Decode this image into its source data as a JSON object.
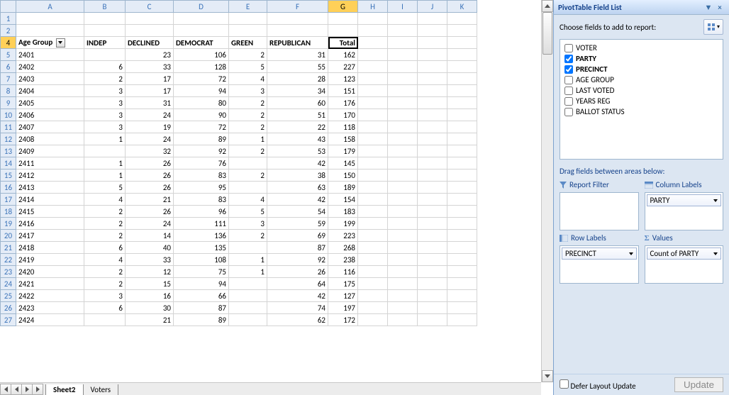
{
  "columns": [
    "A",
    "B",
    "C",
    "D",
    "E",
    "F",
    "G",
    "H",
    "I",
    "J",
    "K"
  ],
  "headerRow": 4,
  "activeCell": {
    "row": 4,
    "col": "G"
  },
  "pivotHeaders": {
    "A": "Age Group",
    "B": "INDEP",
    "C": "DECLINED",
    "D": "DEMOCRAT",
    "E": "GREEN",
    "F": "REPUBLICAN",
    "G": "Total"
  },
  "dataRows": [
    {
      "r": 5,
      "A": "2401",
      "B": "",
      "C": "23",
      "D": "106",
      "E": "2",
      "F": "31",
      "G": "162"
    },
    {
      "r": 6,
      "A": "2402",
      "B": "6",
      "C": "33",
      "D": "128",
      "E": "5",
      "F": "55",
      "G": "227"
    },
    {
      "r": 7,
      "A": "2403",
      "B": "2",
      "C": "17",
      "D": "72",
      "E": "4",
      "F": "28",
      "G": "123"
    },
    {
      "r": 8,
      "A": "2404",
      "B": "3",
      "C": "17",
      "D": "94",
      "E": "3",
      "F": "34",
      "G": "151"
    },
    {
      "r": 9,
      "A": "2405",
      "B": "3",
      "C": "31",
      "D": "80",
      "E": "2",
      "F": "60",
      "G": "176"
    },
    {
      "r": 10,
      "A": "2406",
      "B": "3",
      "C": "24",
      "D": "90",
      "E": "2",
      "F": "51",
      "G": "170"
    },
    {
      "r": 11,
      "A": "2407",
      "B": "3",
      "C": "19",
      "D": "72",
      "E": "2",
      "F": "22",
      "G": "118"
    },
    {
      "r": 12,
      "A": "2408",
      "B": "1",
      "C": "24",
      "D": "89",
      "E": "1",
      "F": "43",
      "G": "158"
    },
    {
      "r": 13,
      "A": "2409",
      "B": "",
      "C": "32",
      "D": "92",
      "E": "2",
      "F": "53",
      "G": "179"
    },
    {
      "r": 14,
      "A": "2411",
      "B": "1",
      "C": "26",
      "D": "76",
      "E": "",
      "F": "42",
      "G": "145"
    },
    {
      "r": 15,
      "A": "2412",
      "B": "1",
      "C": "26",
      "D": "83",
      "E": "2",
      "F": "38",
      "G": "150"
    },
    {
      "r": 16,
      "A": "2413",
      "B": "5",
      "C": "26",
      "D": "95",
      "E": "",
      "F": "63",
      "G": "189"
    },
    {
      "r": 17,
      "A": "2414",
      "B": "4",
      "C": "21",
      "D": "83",
      "E": "4",
      "F": "42",
      "G": "154"
    },
    {
      "r": 18,
      "A": "2415",
      "B": "2",
      "C": "26",
      "D": "96",
      "E": "5",
      "F": "54",
      "G": "183"
    },
    {
      "r": 19,
      "A": "2416",
      "B": "2",
      "C": "24",
      "D": "111",
      "E": "3",
      "F": "59",
      "G": "199"
    },
    {
      "r": 20,
      "A": "2417",
      "B": "2",
      "C": "14",
      "D": "136",
      "E": "2",
      "F": "69",
      "G": "223"
    },
    {
      "r": 21,
      "A": "2418",
      "B": "6",
      "C": "40",
      "D": "135",
      "E": "",
      "F": "87",
      "G": "268"
    },
    {
      "r": 22,
      "A": "2419",
      "B": "4",
      "C": "33",
      "D": "108",
      "E": "1",
      "F": "92",
      "G": "238"
    },
    {
      "r": 23,
      "A": "2420",
      "B": "2",
      "C": "12",
      "D": "75",
      "E": "1",
      "F": "26",
      "G": "116"
    },
    {
      "r": 24,
      "A": "2421",
      "B": "2",
      "C": "15",
      "D": "94",
      "E": "",
      "F": "64",
      "G": "175"
    },
    {
      "r": 25,
      "A": "2422",
      "B": "3",
      "C": "16",
      "D": "66",
      "E": "",
      "F": "42",
      "G": "127"
    },
    {
      "r": 26,
      "A": "2423",
      "B": "6",
      "C": "30",
      "D": "87",
      "E": "",
      "F": "74",
      "G": "197"
    },
    {
      "r": 27,
      "A": "2424",
      "B": "",
      "C": "21",
      "D": "89",
      "E": "",
      "F": "62",
      "G": "172"
    }
  ],
  "sheetTabs": [
    {
      "name": "Sheet2",
      "active": true
    },
    {
      "name": "Voters",
      "active": false
    }
  ],
  "pane": {
    "title": "PivotTable Field List",
    "chooseLabel": "Choose fields to add to report:",
    "fields": [
      {
        "label": "VOTER",
        "checked": false,
        "bold": false
      },
      {
        "label": "PARTY",
        "checked": true,
        "bold": true
      },
      {
        "label": "PRECINCT",
        "checked": true,
        "bold": true
      },
      {
        "label": "AGE GROUP",
        "checked": false,
        "bold": false
      },
      {
        "label": "LAST VOTED",
        "checked": false,
        "bold": false
      },
      {
        "label": "YEARS REG",
        "checked": false,
        "bold": false
      },
      {
        "label": "BALLOT STATUS",
        "checked": false,
        "bold": false
      }
    ],
    "dragLabel": "Drag fields between areas below:",
    "areas": {
      "reportFilter": {
        "title": "Report Filter",
        "items": []
      },
      "columnLabels": {
        "title": "Column Labels",
        "items": [
          "PARTY"
        ]
      },
      "rowLabels": {
        "title": "Row Labels",
        "items": [
          "PRECINCT"
        ]
      },
      "values": {
        "title": "Values",
        "items": [
          "Count of PARTY"
        ]
      }
    },
    "deferLabel": "Defer Layout Update",
    "updateLabel": "Update"
  }
}
